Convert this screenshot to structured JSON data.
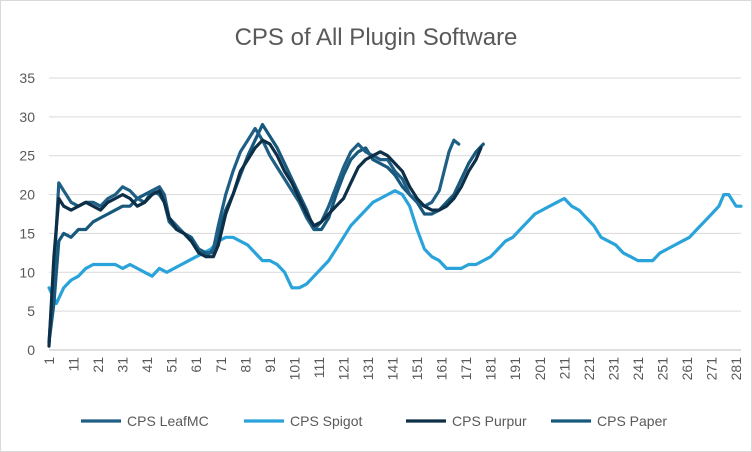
{
  "chart_data": {
    "type": "line",
    "title": "CPS of All Plugin Software",
    "xlabel": "",
    "ylabel": "",
    "ylim": [
      0,
      35
    ],
    "yticks": [
      0,
      5,
      10,
      15,
      20,
      25,
      30,
      35
    ],
    "xlim": [
      1,
      283
    ],
    "xticks": [
      1,
      11,
      21,
      31,
      41,
      51,
      61,
      71,
      81,
      91,
      101,
      111,
      121,
      131,
      141,
      151,
      161,
      171,
      181,
      191,
      201,
      211,
      221,
      231,
      241,
      251,
      261,
      271,
      281
    ],
    "grid": "horizontal",
    "legend_position": "bottom",
    "series": [
      {
        "name": "CPS LeafMC",
        "color": "#1f5f85",
        "x": [
          1,
          3,
          5,
          7,
          10,
          13,
          16,
          19,
          22,
          25,
          28,
          31,
          34,
          37,
          40,
          43,
          46,
          48,
          50,
          53,
          56,
          59,
          62,
          65,
          68,
          70,
          73,
          76,
          79,
          82,
          85,
          88,
          91,
          94,
          97,
          100,
          103,
          106,
          109,
          112,
          115,
          118,
          121,
          124,
          127,
          130,
          133,
          136,
          139,
          142,
          145,
          148,
          151,
          154,
          157,
          160,
          162,
          164,
          166,
          168
        ],
        "y": [
          1,
          10,
          21.5,
          20.5,
          19,
          18.5,
          19,
          19,
          18.5,
          19.5,
          20,
          21,
          20.5,
          19.5,
          19,
          20.5,
          21,
          20,
          17,
          16,
          15,
          14,
          13,
          12,
          13,
          16,
          20,
          23,
          25.5,
          27,
          28.5,
          27,
          25,
          23.5,
          22,
          20.5,
          19,
          17,
          15.5,
          16.5,
          18.5,
          21,
          23.5,
          25.5,
          26.5,
          25.5,
          25,
          24.5,
          24.5,
          23,
          22,
          20,
          19,
          18.5,
          19,
          20.5,
          23,
          25.5,
          27,
          26.5
        ]
      },
      {
        "name": "CPS Spigot",
        "color": "#29a3da",
        "x": [
          1,
          4,
          7,
          10,
          13,
          16,
          19,
          22,
          25,
          28,
          31,
          34,
          37,
          40,
          43,
          46,
          49,
          52,
          55,
          58,
          61,
          64,
          67,
          70,
          73,
          76,
          79,
          82,
          85,
          88,
          91,
          94,
          97,
          100,
          103,
          106,
          109,
          112,
          115,
          118,
          121,
          124,
          127,
          130,
          133,
          136,
          139,
          142,
          145,
          148,
          151,
          154,
          157,
          160,
          163,
          166,
          169,
          172,
          175,
          178,
          181,
          184,
          187,
          190,
          193,
          196,
          199,
          202,
          205,
          208,
          211,
          214,
          217,
          220,
          223,
          226,
          229,
          232,
          235,
          238,
          241,
          244,
          247,
          250,
          253,
          256,
          259,
          262,
          265,
          268,
          271,
          274,
          276,
          278,
          281,
          283
        ],
        "y": [
          8,
          6,
          8,
          9,
          9.5,
          10.5,
          11,
          11,
          11,
          11,
          10.5,
          11,
          10.5,
          10,
          9.5,
          10.5,
          10,
          10.5,
          11,
          11.5,
          12,
          12.5,
          13,
          14,
          14.5,
          14.5,
          14,
          13.5,
          12.5,
          11.5,
          11.5,
          11,
          10,
          8,
          8,
          8.5,
          9.5,
          10.5,
          11.5,
          13,
          14.5,
          16,
          17,
          18,
          19,
          19.5,
          20,
          20.5,
          20,
          18.5,
          15.5,
          13,
          12,
          11.5,
          10.5,
          10.5,
          10.5,
          11,
          11,
          11.5,
          12,
          13,
          14,
          14.5,
          15.5,
          16.5,
          17.5,
          18,
          18.5,
          19,
          19.5,
          18.5,
          18,
          17,
          16,
          14.5,
          14,
          13.5,
          12.5,
          12,
          11.5,
          11.5,
          11.5,
          12.5,
          13,
          13.5,
          14,
          14.5,
          15.5,
          16.5,
          17.5,
          18.5,
          20,
          20,
          18.5,
          18.5
        ]
      },
      {
        "name": "CPS Purpur",
        "color": "#0d2f47",
        "x": [
          1,
          3,
          5,
          7,
          10,
          13,
          16,
          19,
          22,
          25,
          28,
          31,
          34,
          37,
          40,
          43,
          46,
          48,
          50,
          53,
          56,
          59,
          62,
          65,
          68,
          70,
          73,
          76,
          79,
          82,
          85,
          88,
          91,
          94,
          97,
          100,
          103,
          106,
          109,
          112,
          115,
          118,
          121,
          124,
          127,
          130,
          133,
          136,
          139,
          142,
          145,
          148,
          151,
          154,
          157,
          160,
          163,
          166,
          169,
          172,
          175,
          177
        ],
        "y": [
          0.5,
          12,
          19.5,
          18.5,
          18,
          18.5,
          19,
          18.5,
          18,
          19,
          19.5,
          20,
          19.5,
          18.5,
          19,
          20,
          20.5,
          19,
          17,
          15.5,
          15,
          14,
          12.5,
          12,
          12,
          13.5,
          17.5,
          20,
          23,
          24.5,
          26,
          27,
          26.5,
          25,
          23,
          21.5,
          19.5,
          17.5,
          16,
          16.5,
          17.5,
          18.5,
          19.5,
          21.5,
          23.5,
          24.5,
          25,
          25.5,
          25,
          24,
          23,
          21,
          19.5,
          18.5,
          18,
          18,
          18.5,
          19.5,
          21,
          23,
          24.5,
          26
        ]
      },
      {
        "name": "CPS Paper",
        "color": "#17597d",
        "x": [
          1,
          3,
          5,
          7,
          10,
          13,
          16,
          19,
          22,
          25,
          28,
          31,
          34,
          37,
          40,
          43,
          46,
          48,
          50,
          53,
          56,
          59,
          62,
          65,
          68,
          70,
          73,
          76,
          79,
          82,
          85,
          88,
          91,
          94,
          97,
          100,
          103,
          106,
          109,
          112,
          115,
          118,
          121,
          124,
          127,
          130,
          133,
          136,
          139,
          142,
          145,
          148,
          151,
          154,
          157,
          160,
          163,
          166,
          169,
          172,
          175,
          178
        ],
        "y": [
          1,
          6,
          14,
          15,
          14.5,
          15.5,
          15.5,
          16.5,
          17,
          17.5,
          18,
          18.5,
          18.5,
          19.5,
          20,
          20.5,
          20,
          19,
          16.5,
          15.5,
          15,
          14.5,
          13,
          12.5,
          12.5,
          15,
          18,
          20,
          22.5,
          25,
          27,
          29,
          27.5,
          26,
          24,
          22,
          20,
          18,
          15.5,
          15.5,
          17,
          20,
          22.5,
          24.5,
          25.5,
          26,
          24.5,
          24,
          23.5,
          22.5,
          21,
          20,
          19,
          17.5,
          17.5,
          18,
          19,
          20,
          22,
          24,
          25.5,
          26.5
        ]
      }
    ]
  }
}
